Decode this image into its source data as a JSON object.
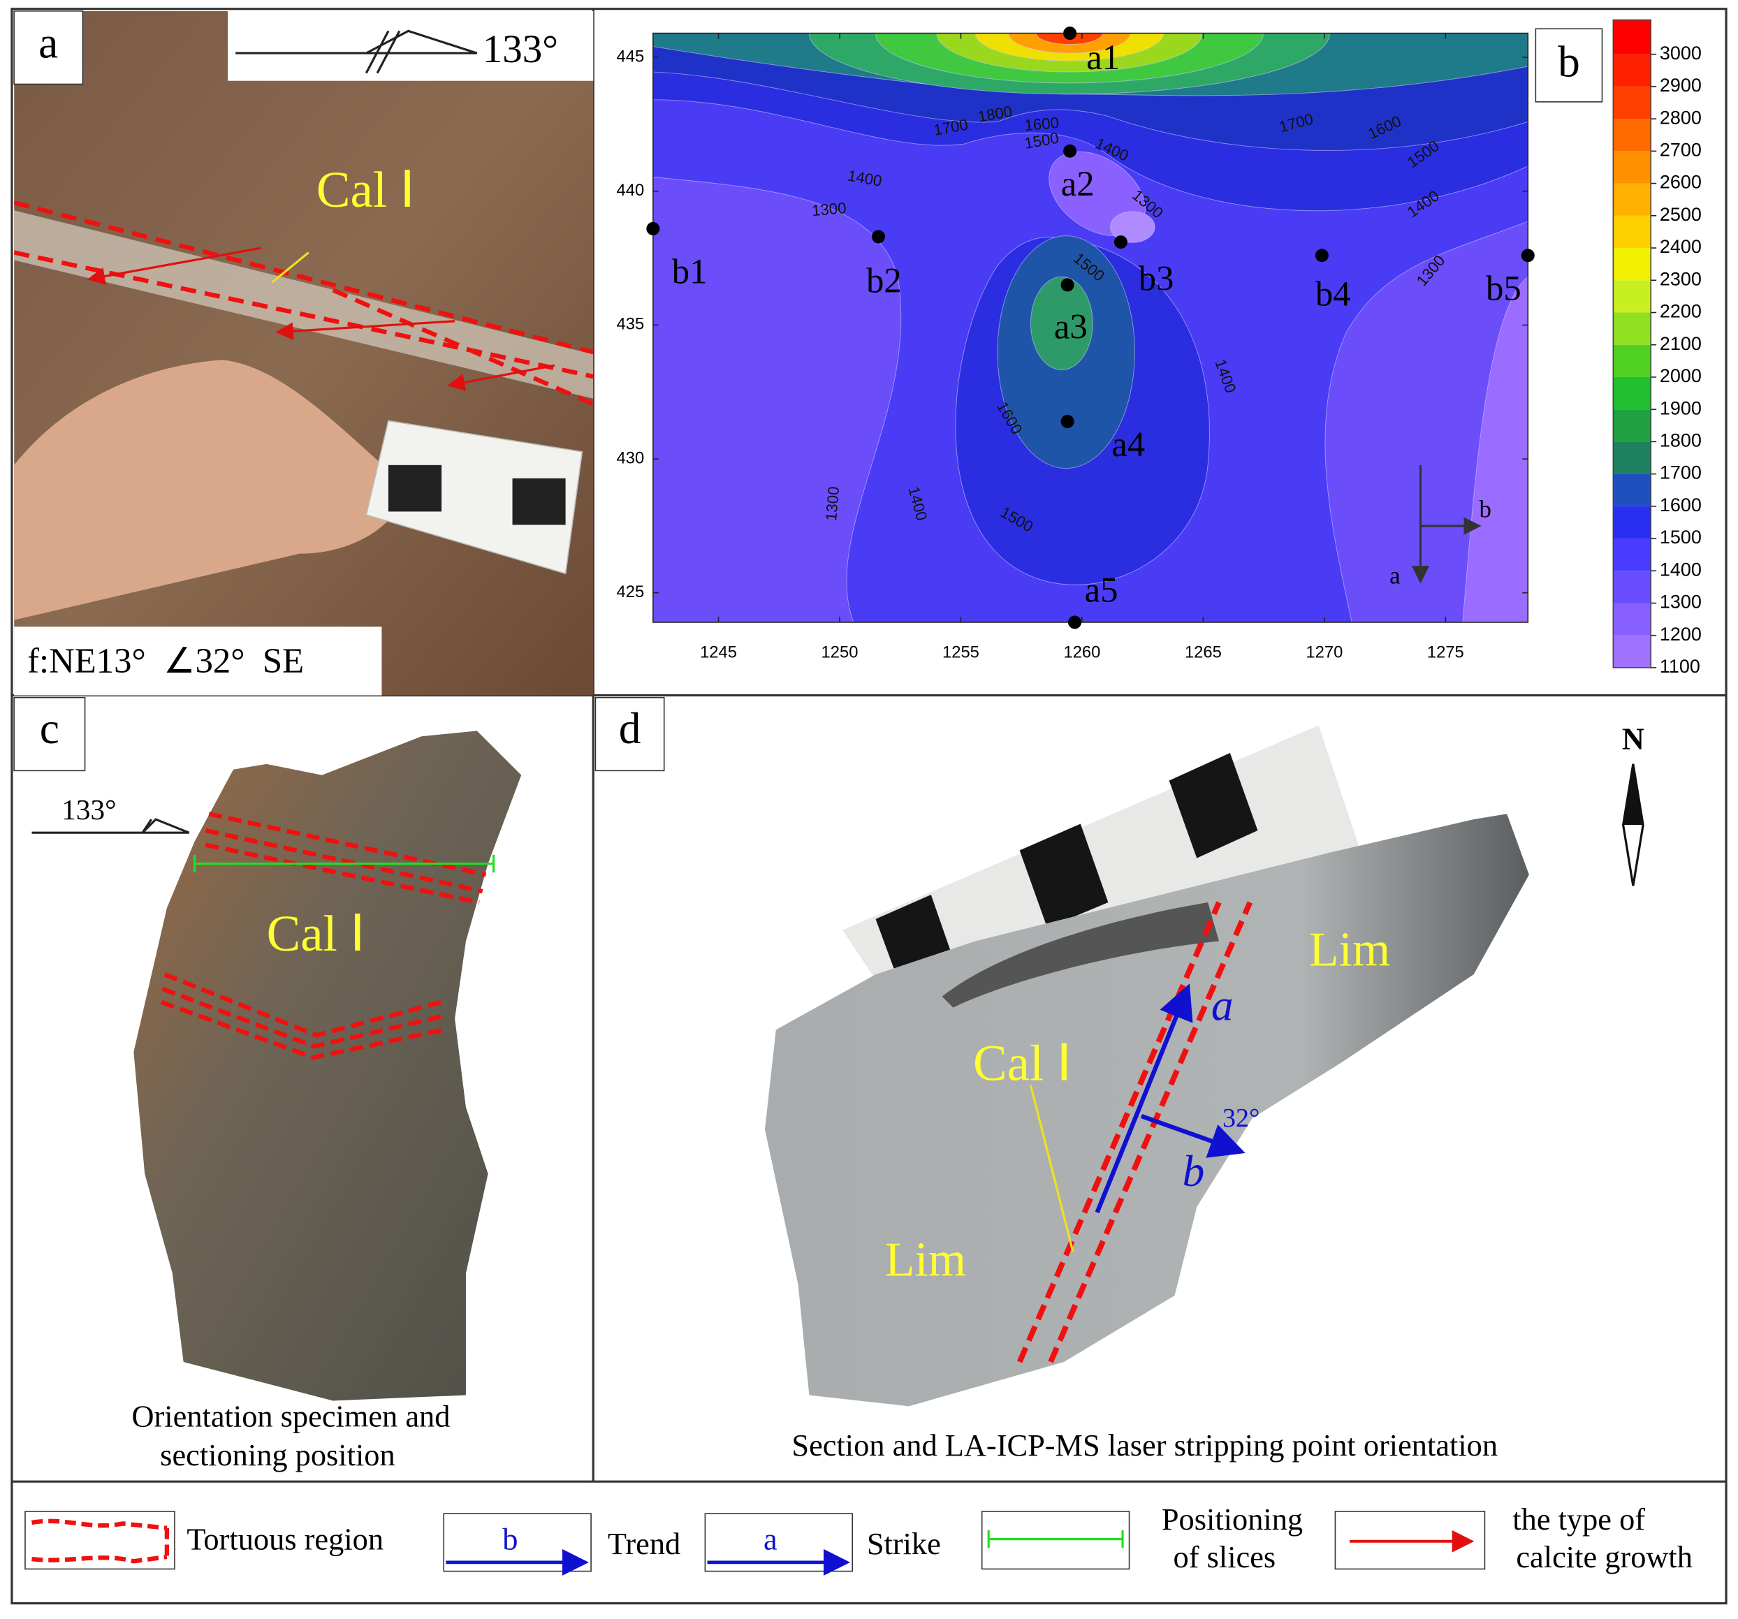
{
  "panels": {
    "a": {
      "label": "a",
      "strike": "133°",
      "vein": "Cal Ⅰ",
      "attitude": "f:NE13°  ∠32°  SE"
    },
    "b": {
      "label": "b",
      "xlim": [
        1242.3,
        1278.4
      ],
      "ylim": [
        423.9,
        445.9
      ],
      "xticks": [
        1245,
        1250,
        1255,
        1260,
        1265,
        1270,
        1275
      ],
      "yticks": [
        425,
        430,
        435,
        440,
        445
      ],
      "points": [
        {
          "name": "a1",
          "x": 1259.5,
          "y": 445.9
        },
        {
          "name": "a2",
          "x": 1259.5,
          "y": 441.5
        },
        {
          "name": "a3",
          "x": 1259.4,
          "y": 436.5
        },
        {
          "name": "a4",
          "x": 1259.4,
          "y": 431.4
        },
        {
          "name": "a5",
          "x": 1259.7,
          "y": 423.9
        },
        {
          "name": "b1",
          "x": 1242.3,
          "y": 438.6
        },
        {
          "name": "b2",
          "x": 1251.6,
          "y": 438.3
        },
        {
          "name": "b3",
          "x": 1261.6,
          "y": 438.1
        },
        {
          "name": "b4",
          "x": 1269.9,
          "y": 437.6
        },
        {
          "name": "b5",
          "x": 1278.4,
          "y": 437.6
        }
      ],
      "contour_labels": [
        1800,
        1700,
        1600,
        1500,
        1400,
        1300,
        1400,
        1300,
        1700,
        1600,
        1500,
        1400,
        1300,
        1500,
        1400,
        1600,
        1300,
        1400,
        1500
      ],
      "colorbar_ticks": [
        1100,
        1200,
        1300,
        1400,
        1500,
        1600,
        1700,
        1800,
        1900,
        2000,
        2100,
        2200,
        2300,
        2400,
        2500,
        2600,
        2700,
        2800,
        2900,
        3000
      ],
      "direction_labels": [
        "a",
        "b"
      ]
    },
    "c": {
      "label": "c",
      "strike": "133°",
      "vein": "Cal Ⅰ",
      "caption": [
        "Orientation specimen and",
        "sectioning position"
      ]
    },
    "d": {
      "label": "d",
      "north": "N",
      "rock": [
        "Lim",
        "Lim"
      ],
      "vein": "Cal Ⅰ",
      "strike_label": "a",
      "trend_label": "b",
      "dip": "32°",
      "caption": "Section and LA-ICP-MS laser stripping point orientation"
    },
    "legend": [
      {
        "text": [
          "Tortuous region"
        ]
      },
      {
        "symbol": "b",
        "text": [
          "Trend"
        ]
      },
      {
        "symbol": "a",
        "text": [
          "Strike"
        ]
      },
      {
        "text": [
          "Positioning",
          "of slices"
        ]
      },
      {
        "text": [
          "the type of",
          "calcite growth"
        ]
      }
    ]
  }
}
